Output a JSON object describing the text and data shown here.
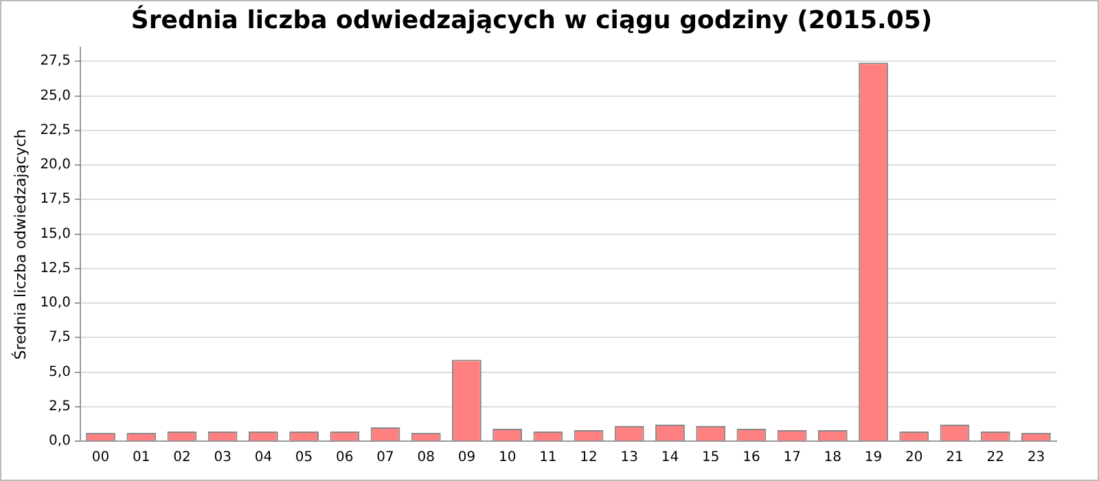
{
  "chart_data": {
    "type": "bar",
    "title": "Średnia liczba odwiedzających w ciągu godziny (2015.05)",
    "ylabel": "Średnia liczba odwiedzających",
    "categories": [
      "00",
      "01",
      "02",
      "03",
      "04",
      "05",
      "06",
      "07",
      "08",
      "09",
      "10",
      "11",
      "12",
      "13",
      "14",
      "15",
      "16",
      "17",
      "18",
      "19",
      "20",
      "21",
      "22",
      "23"
    ],
    "values": [
      0.6,
      0.6,
      0.7,
      0.7,
      0.7,
      0.7,
      0.7,
      1.0,
      0.6,
      5.9,
      0.9,
      0.7,
      0.8,
      1.1,
      1.2,
      1.1,
      0.9,
      0.8,
      0.8,
      27.4,
      0.7,
      1.2,
      0.7,
      0.6
    ],
    "color": "#ff8080",
    "ylim": [
      0,
      28.5
    ],
    "yticks": [
      {
        "value": 0,
        "label": "0,0"
      },
      {
        "value": 2.5,
        "label": "2,5"
      },
      {
        "value": 5,
        "label": "5,0"
      },
      {
        "value": 7.5,
        "label": "7,5"
      },
      {
        "value": 10,
        "label": "10,0"
      },
      {
        "value": 12.5,
        "label": "12,5"
      },
      {
        "value": 15,
        "label": "15,0"
      },
      {
        "value": 17.5,
        "label": "17,5"
      },
      {
        "value": 20,
        "label": "20,0"
      },
      {
        "value": 22.5,
        "label": "22,5"
      },
      {
        "value": 25,
        "label": "25,0"
      },
      {
        "value": 27.5,
        "label": "27,5"
      }
    ],
    "grid": "y",
    "legend": false
  }
}
